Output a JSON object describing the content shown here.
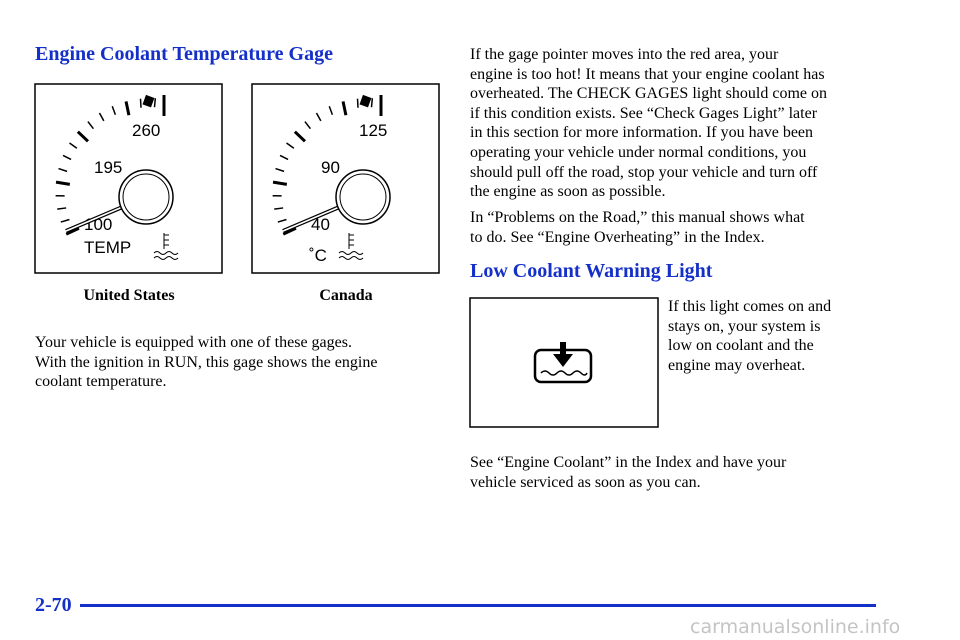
{
  "left": {
    "heading": "Engine Coolant Temperature Gage",
    "gauges": [
      {
        "labels": [
          "260",
          "195",
          "100"
        ],
        "unit": "TEMP",
        "caption": "United States"
      },
      {
        "labels": [
          "125",
          "90",
          "40"
        ],
        "unit": "˚C",
        "caption": "Canada"
      }
    ],
    "paragraph": [
      "Your vehicle is equipped with one of these gages.",
      "With the ignition in RUN, this gage shows the engine",
      "coolant temperature."
    ]
  },
  "right": {
    "paragraph1": [
      "If the gage pointer moves into the red area, your",
      "engine is too hot! It means that your engine coolant has",
      "overheated. The CHECK GAGES light should come on",
      "if this condition exists. See “Check Gages Light” later",
      "in this section for more information. If you have been",
      "operating your vehicle under normal conditions, you",
      "should pull off the road, stop your vehicle and turn off",
      "the engine as soon as possible."
    ],
    "paragraph2": [
      "In “Problems on the Road,” this manual shows what",
      "to do. See “Engine Overheating” in the Index."
    ],
    "heading": "Low Coolant Warning Light",
    "side_text": [
      "If this light comes on and",
      "stays on, your system is",
      "low on coolant and the",
      "engine may overheat."
    ],
    "paragraph3": [
      "See “Engine Coolant” in the Index and have your",
      "vehicle serviced as soon as you can."
    ]
  },
  "footer": {
    "page": "2-70",
    "watermark": "carmanualsonline.info"
  }
}
